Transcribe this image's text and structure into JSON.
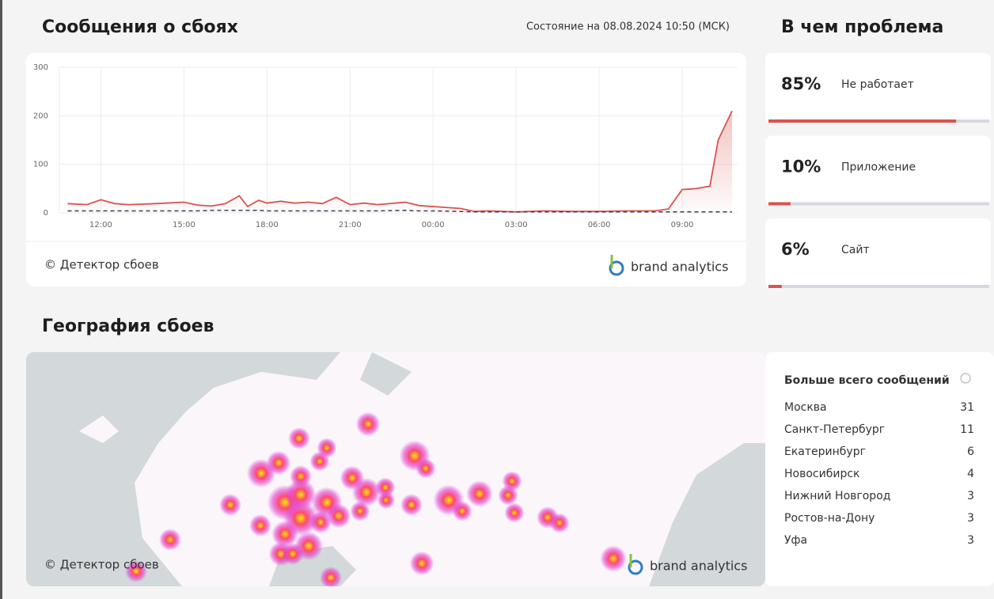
{
  "header": {
    "title": "Сообщения о сбоях",
    "status": "Состояние на 08.08.2024 10:50 (МСК)"
  },
  "chart_data": {
    "type": "line",
    "x": [
      -1.2,
      -0.5,
      0,
      0.5,
      1,
      2,
      3,
      3.5,
      4,
      4.5,
      5,
      5.3,
      5.7,
      6,
      6.5,
      7,
      7.5,
      8,
      8.5,
      9,
      9.5,
      10,
      11,
      11.5,
      12,
      13,
      13.5,
      14,
      15,
      16,
      17,
      18,
      19,
      20,
      20.5,
      21,
      21.5,
      22,
      22.3,
      22.8
    ],
    "series": [
      {
        "color": "#d9534f",
        "values": [
          19,
          17,
          27,
          19,
          17,
          19,
          22,
          16,
          14,
          19,
          35,
          13,
          26,
          20,
          24,
          20,
          22,
          19,
          32,
          17,
          20,
          17,
          22,
          15,
          13,
          9,
          3,
          4,
          2,
          4,
          3,
          3,
          4,
          4,
          8,
          48,
          50,
          55,
          150,
          210
        ]
      },
      {
        "color": "#3b3f5c",
        "dashed": true,
        "values": [
          4,
          4,
          4,
          4,
          4,
          4,
          4,
          4,
          5,
          5,
          5,
          5,
          5,
          4,
          4,
          4,
          4,
          4,
          4,
          4,
          4,
          4,
          5,
          4,
          4,
          3,
          2,
          2,
          2,
          2,
          2,
          2,
          2,
          2,
          2,
          2,
          2,
          2,
          2,
          2
        ]
      }
    ],
    "xlim": [
      -1.5,
      23
    ],
    "xticks": [
      {
        "value": 0,
        "label": "12:00"
      },
      {
        "value": 3,
        "label": "15:00"
      },
      {
        "value": 6,
        "label": "18:00"
      },
      {
        "value": 9,
        "label": "21:00"
      },
      {
        "value": 12,
        "label": "00:00"
      },
      {
        "value": 15,
        "label": "03:00"
      },
      {
        "value": 18,
        "label": "06:00"
      },
      {
        "value": 21,
        "label": "09:00"
      }
    ],
    "ylim": [
      0,
      300
    ],
    "yticks": [
      0,
      100,
      200,
      300
    ],
    "grid": true
  },
  "chart_footer": {
    "credit": "© Детектор сбоев",
    "brand": "brand analytics"
  },
  "problems": {
    "title": "В чем проблема",
    "items": [
      {
        "value": 85,
        "label": "85%",
        "name": "Не работает"
      },
      {
        "value": 10,
        "label": "10%",
        "name": "Приложение"
      },
      {
        "value": 6,
        "label": "6%",
        "name": "Сайт"
      }
    ]
  },
  "geography": {
    "title": "География сбоев",
    "credit": "© Детектор сбоев",
    "brand": "brand analytics"
  },
  "top_regions": {
    "title": "Больше всего сообщений",
    "rows": [
      {
        "name": "Москва",
        "count": 31
      },
      {
        "name": "Санкт-Петербург",
        "count": 11
      },
      {
        "name": "Екатеринбург",
        "count": 6
      },
      {
        "name": "Новосибирск",
        "count": 4
      },
      {
        "name": "Нижний Новгород",
        "count": 3
      },
      {
        "name": "Ростов-на-Дону",
        "count": 3
      },
      {
        "name": "Уфа",
        "count": 3
      }
    ]
  }
}
